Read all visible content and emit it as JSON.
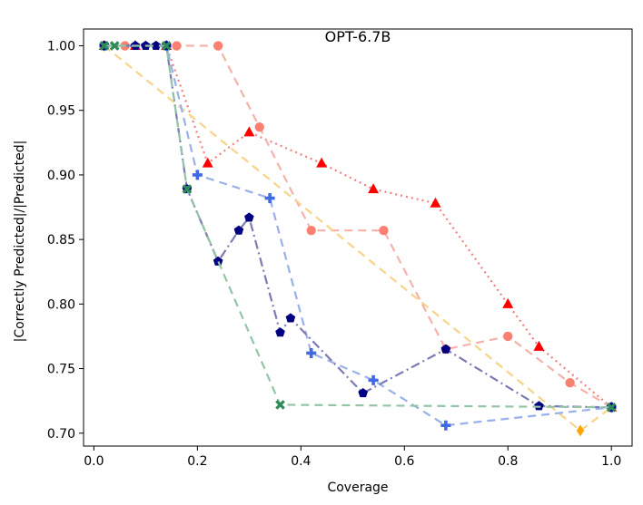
{
  "chart_data": {
    "type": "line",
    "title": "OPT-6.7B",
    "xlabel": "Coverage",
    "ylabel": "|Correctly Predicted|/|Predicted|",
    "xlim": [
      -0.02,
      1.04
    ],
    "ylim": [
      0.69,
      1.013
    ],
    "xticks": [
      0.0,
      0.2,
      0.4,
      0.6,
      0.8,
      1.0
    ],
    "xtick_labels": [
      "0.0",
      "0.2",
      "0.4",
      "0.6",
      "0.8",
      "1.0"
    ],
    "yticks": [
      0.7,
      0.75,
      0.8,
      0.85,
      0.9,
      0.95,
      1.0
    ],
    "ytick_labels": [
      "0.70",
      "0.75",
      "0.80",
      "0.85",
      "0.90",
      "0.95",
      "1.00"
    ],
    "grid": false,
    "legend": "none",
    "series": [
      {
        "name": "red-triangle-dotted",
        "color": "#ff0000",
        "line_color": "#f08080",
        "line_style": "dotted",
        "marker": "triangle",
        "x": [
          0.02,
          0.08,
          0.14,
          0.22,
          0.3,
          0.44,
          0.54,
          0.66,
          0.8,
          0.86,
          1.0
        ],
        "y": [
          1.0,
          1.0,
          1.0,
          0.909,
          0.933,
          0.909,
          0.889,
          0.878,
          0.8,
          0.767,
          0.72
        ]
      },
      {
        "name": "salmon-circle-dashed",
        "color": "#fa8072",
        "line_color": "#f4b2aa",
        "line_style": "dashed",
        "marker": "circle",
        "x": [
          0.02,
          0.06,
          0.16,
          0.24,
          0.32,
          0.42,
          0.56,
          0.68,
          0.8,
          0.92,
          1.0
        ],
        "y": [
          1.0,
          1.0,
          1.0,
          1.0,
          0.937,
          0.857,
          0.857,
          0.765,
          0.775,
          0.739,
          0.72
        ]
      },
      {
        "name": "orange-diamond-dashed",
        "color": "#ffa500",
        "line_color": "#f9d38a",
        "line_style": "dashed",
        "marker": "diamond",
        "x": [
          0.02,
          0.94,
          1.0
        ],
        "y": [
          1.0,
          0.702,
          0.72
        ]
      },
      {
        "name": "royalblue-plus-dashed",
        "color": "#4169e1",
        "line_color": "#9ab0ea",
        "line_style": "dashed",
        "marker": "plus",
        "x": [
          0.02,
          0.14,
          0.2,
          0.34,
          0.42,
          0.54,
          0.68,
          1.0
        ],
        "y": [
          1.0,
          1.0,
          0.9,
          0.882,
          0.762,
          0.741,
          0.706,
          0.72
        ]
      },
      {
        "name": "navy-pentagon-dashdot",
        "color": "#000080",
        "line_color": "#7b7bb5",
        "line_style": "dashdot",
        "marker": "pentagon",
        "x": [
          0.02,
          0.08,
          0.1,
          0.12,
          0.14,
          0.18,
          0.24,
          0.28,
          0.3,
          0.36,
          0.38,
          0.52,
          0.68,
          0.86,
          1.0
        ],
        "y": [
          1.0,
          1.0,
          1.0,
          1.0,
          1.0,
          0.889,
          0.833,
          0.857,
          0.867,
          0.778,
          0.789,
          0.731,
          0.765,
          0.721,
          0.72
        ]
      },
      {
        "name": "seagreen-x-dashed",
        "color": "#2e8b57",
        "line_color": "#94c4a6",
        "line_style": "dashed",
        "marker": "x",
        "x": [
          0.02,
          0.04,
          0.14,
          0.18,
          0.36,
          1.0
        ],
        "y": [
          1.0,
          1.0,
          1.0,
          0.889,
          0.722,
          0.72
        ]
      }
    ]
  }
}
